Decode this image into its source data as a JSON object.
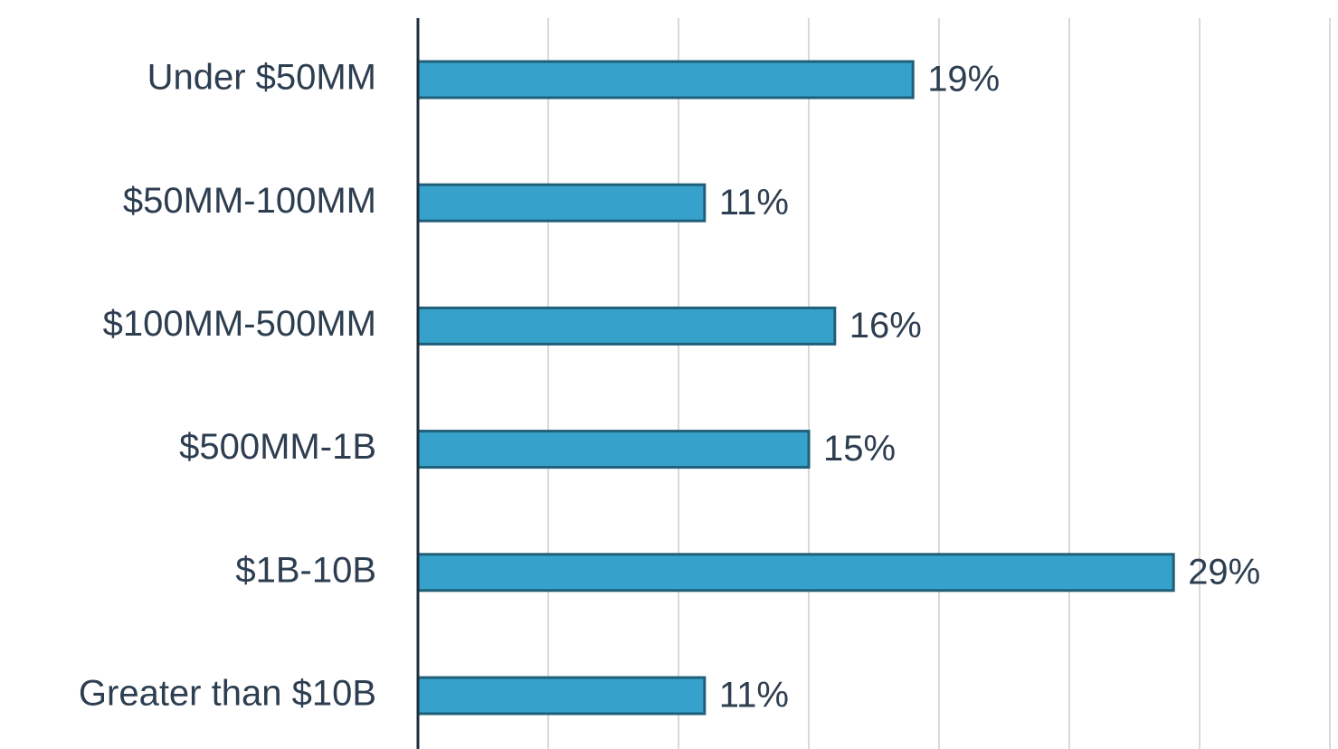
{
  "chart_data": {
    "type": "bar",
    "orientation": "horizontal",
    "categories": [
      "Under $50MM",
      "$50MM-100MM",
      "$100MM-500MM",
      "$500MM-1B",
      "$1B-10B",
      "Greater than $10B"
    ],
    "values": [
      19,
      11,
      16,
      15,
      29,
      11
    ],
    "value_labels": [
      "19%",
      "11%",
      "16%",
      "15%",
      "29%",
      "11%"
    ],
    "color": "#36a2cc",
    "xlim": [
      0,
      35
    ],
    "xticks": [
      0,
      5,
      10,
      15,
      20,
      25,
      30,
      35
    ],
    "grid": true
  }
}
